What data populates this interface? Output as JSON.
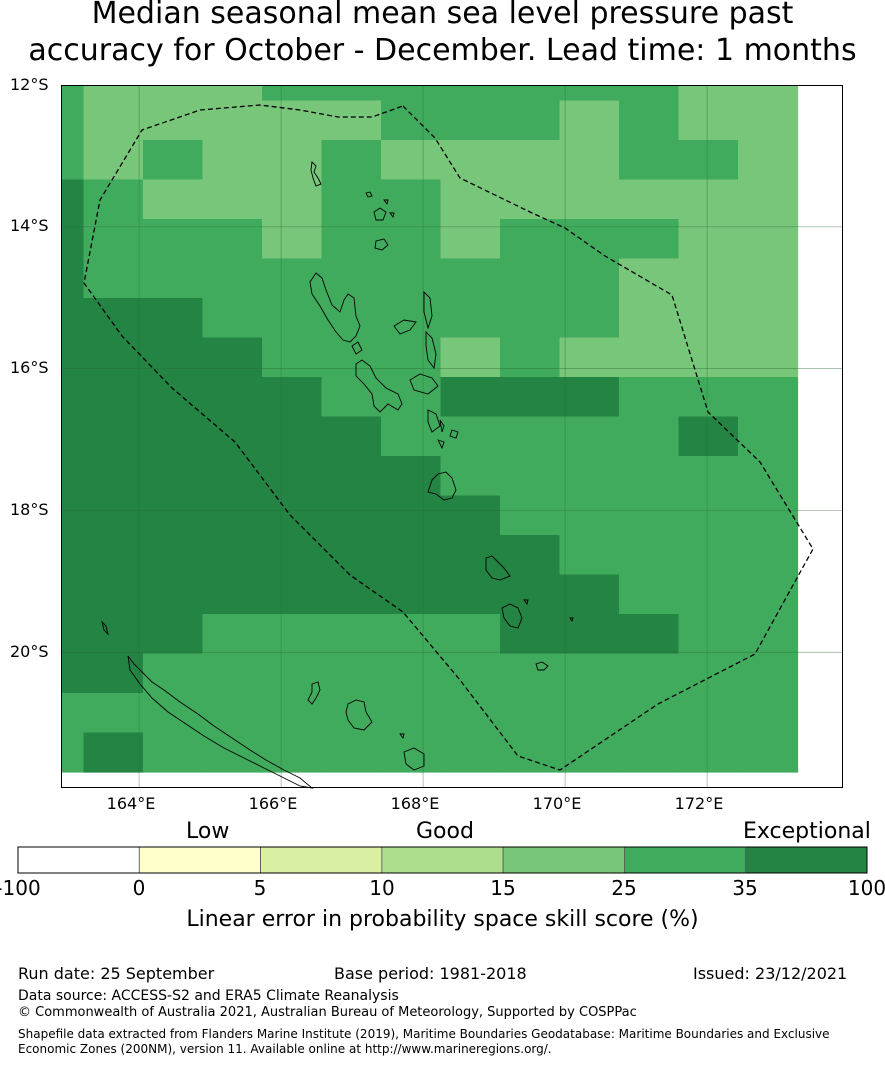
{
  "title": {
    "line1": "Median seasonal mean sea level pressure past",
    "line2": "accuracy for October - December. Lead time: 1 months"
  },
  "map": {
    "lat_labels": [
      "12°S",
      "14°S",
      "16°S",
      "18°S",
      "20°S"
    ],
    "lon_labels": [
      "164°E",
      "166°E",
      "168°E",
      "170°E",
      "172°E"
    ],
    "extent": {
      "lon": [
        162.9,
        173.9
      ],
      "lat": [
        -21.9,
        -12.0
      ]
    }
  },
  "legend": {
    "categories": [
      "Low",
      "Good",
      "Exceptional"
    ],
    "ticks": [
      "-100",
      "0",
      "5",
      "10",
      "15",
      "25",
      "35",
      "100"
    ],
    "colors": [
      "#ffffff",
      "#ffffcc",
      "#d9f0a3",
      "#addd8e",
      "#78c679",
      "#41ab5d",
      "#238443"
    ],
    "label": "Linear error in probability space skill score (%)"
  },
  "grid": {
    "colors": {
      "1": "#78c679",
      "2": "#41ab5d",
      "3": "#238443"
    },
    "rows": [
      "2111222222211",
      "2111112221211",
      "2121121111221",
      "3211122111111",
      "3222122122211",
      "3222222222111",
      "3332222222111",
      "3333222121111",
      "3333322333222",
      "3333332222232",
      "3333333222222",
      "3333333322222",
      "3333333332222",
      "3333333333222",
      "3332222233322",
      "3322222222222",
      "2222222222222",
      "2322222222222"
    ]
  },
  "footer": {
    "run_date": "Run date: 25 September",
    "base_period": "Base period: 1981-2018",
    "issued": "Issued: 23/12/2021",
    "data_source": "Data source: ACCESS-S2 and ERA5 Climate Reanalysis",
    "copyright": "© Commonwealth of Australia 2021, Australian Bureau of Meteorology, Supported by COSPPac",
    "shapefile": "Shapefile data extracted from Flanders Marine Institute (2019), Maritime Boundaries Geodatabase: Maritime Boundaries and Exclusive Economic Zones (200NM), version 11. Available online at http://www.marineregions.org/."
  }
}
